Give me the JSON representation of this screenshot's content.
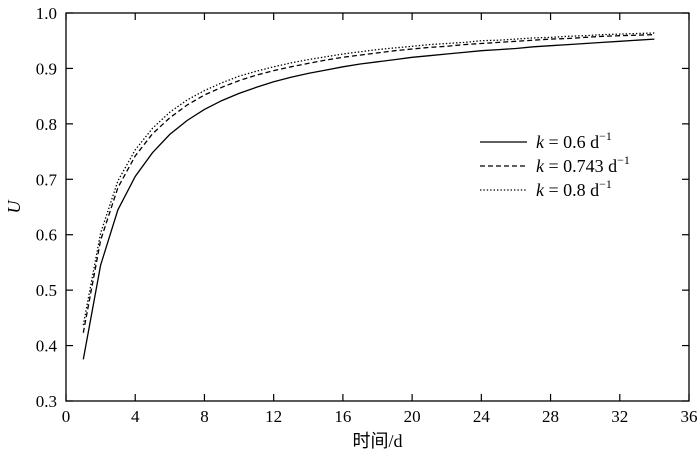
{
  "chart_data": {
    "type": "line",
    "title": "",
    "xlabel": "时间/d",
    "ylabel": "U",
    "xlim": [
      0,
      36
    ],
    "ylim": [
      0.3,
      1.0
    ],
    "xticks": [
      "0",
      "4",
      "8",
      "12",
      "16",
      "20",
      "24",
      "28",
      "32",
      "36"
    ],
    "yticks": [
      "0.3",
      "0.4",
      "0.5",
      "0.6",
      "0.7",
      "0.8",
      "0.9",
      "1.0"
    ],
    "grid": false,
    "legend_position": "right",
    "legend": [
      {
        "italic": "k",
        "rest": " = 0.6 d",
        "sup": "−1",
        "style": "solid"
      },
      {
        "italic": "k",
        "rest": " = 0.743 d",
        "sup": "−1",
        "style": "dashed"
      },
      {
        "italic": "k",
        "rest": " = 0.8 d",
        "sup": "−1",
        "style": "dotted"
      }
    ],
    "x": [
      1,
      2,
      3,
      4,
      5,
      6,
      7,
      8,
      9,
      10,
      11,
      12,
      13,
      14,
      15,
      16,
      17,
      18,
      19,
      20,
      21,
      22,
      23,
      24,
      25,
      26,
      27,
      28,
      29,
      30,
      31,
      32,
      33,
      34
    ],
    "series": [
      {
        "style": "solid",
        "values": [
          0.375,
          0.545,
          0.645,
          0.705,
          0.748,
          0.781,
          0.806,
          0.826,
          0.842,
          0.855,
          0.866,
          0.876,
          0.884,
          0.891,
          0.897,
          0.903,
          0.908,
          0.912,
          0.916,
          0.92,
          0.923,
          0.926,
          0.929,
          0.932,
          0.934,
          0.936,
          0.939,
          0.941,
          0.943,
          0.945,
          0.947,
          0.949,
          0.951,
          0.953
        ]
      },
      {
        "style": "dashed",
        "values": [
          0.423,
          0.59,
          0.685,
          0.742,
          0.782,
          0.811,
          0.834,
          0.852,
          0.866,
          0.878,
          0.888,
          0.896,
          0.903,
          0.909,
          0.915,
          0.92,
          0.924,
          0.928,
          0.932,
          0.935,
          0.938,
          0.94,
          0.943,
          0.945,
          0.947,
          0.949,
          0.951,
          0.953,
          0.954,
          0.956,
          0.958,
          0.959,
          0.96,
          0.961
        ]
      },
      {
        "style": "dotted",
        "values": [
          0.437,
          0.603,
          0.697,
          0.753,
          0.792,
          0.821,
          0.843,
          0.86,
          0.874,
          0.886,
          0.895,
          0.903,
          0.91,
          0.916,
          0.921,
          0.926,
          0.93,
          0.934,
          0.937,
          0.94,
          0.943,
          0.945,
          0.947,
          0.95,
          0.951,
          0.953,
          0.955,
          0.956,
          0.958,
          0.959,
          0.961,
          0.962,
          0.963,
          0.964
        ]
      }
    ]
  }
}
